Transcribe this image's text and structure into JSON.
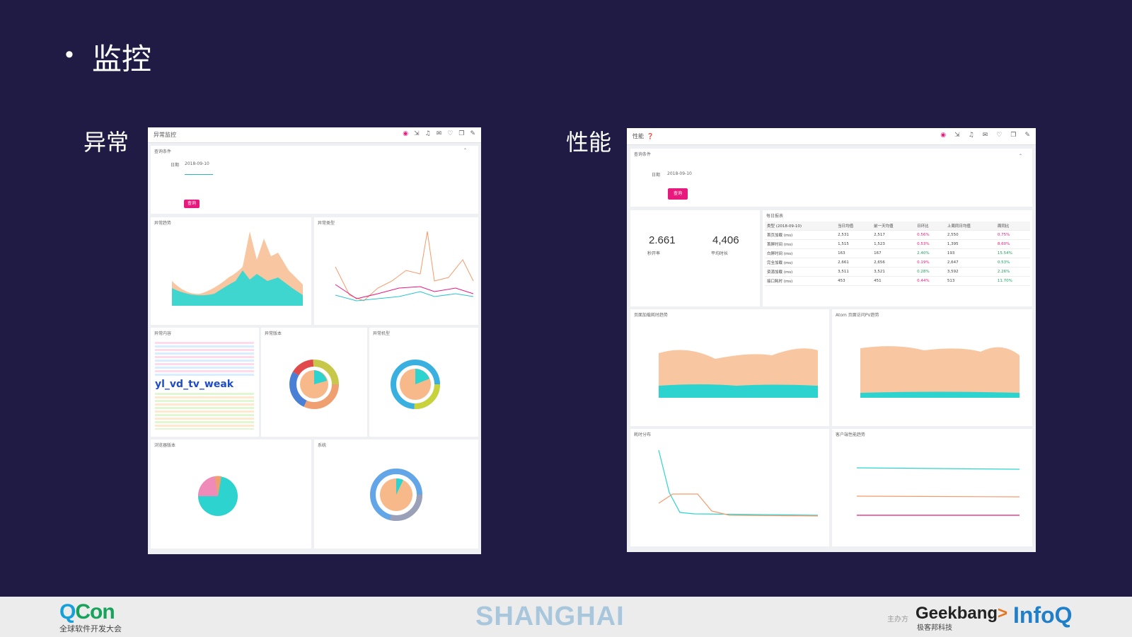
{
  "slide": {
    "bullet": "•",
    "title": "监控",
    "label_left": "异常",
    "label_right": "性能"
  },
  "left_dashboard": {
    "title": "异常监控",
    "query_section": "查询条件",
    "date_label": "日期",
    "date_value": "2018-09-10",
    "query_button": "查询",
    "cards": [
      "异常趋势",
      "异常类型",
      "异常内容",
      "异常版本",
      "异常机型",
      "浏览器版本",
      "系统"
    ],
    "wordcloud_big": "yl_vd_tv_weak"
  },
  "right_dashboard": {
    "title": "性能",
    "query_section": "查询条件",
    "date_label": "日期",
    "date_value": "2018-09-10",
    "query_button": "查询",
    "metric1_value": "2.661",
    "metric1_label": "秒开率",
    "metric2_value": "4,406",
    "metric2_label": "平均时长",
    "table_title": "每日报表",
    "table_headers": [
      "类型 (2018-09-10)",
      "当日均值",
      "前一天均值",
      "日环比",
      "上周同日均值",
      "周同比"
    ],
    "table_rows": [
      [
        "首页加载 (ms)",
        "2,531",
        "2,517",
        "0.56%",
        "2,550",
        "0.75%"
      ],
      [
        "首屏时间 (ms)",
        "1,515",
        "1,523",
        "0.53%",
        "1,395",
        "8.60%"
      ],
      [
        "白屏时间 (ms)",
        "163",
        "167",
        "2.40%",
        "193",
        "15.54%"
      ],
      [
        "完全加载 (ms)",
        "2,661",
        "2,656",
        "0.19%",
        "2,647",
        "0.53%"
      ],
      [
        "资源加载 (ms)",
        "3,511",
        "3,521",
        "0.28%",
        "3,592",
        "2.26%"
      ],
      [
        "接口耗时 (ms)",
        "453",
        "451",
        "0.44%",
        "513",
        "11.70%"
      ]
    ],
    "chart_titles": [
      "页面加载耗时趋势",
      "Atom 页面访问PV趋势",
      "耗时分布",
      "客户端性能趋势"
    ]
  },
  "footer": {
    "qcon_q": "Q",
    "qcon_rest": "Con",
    "qcon_sub": "全球软件开发大会",
    "city": "SHANGHAI",
    "host": "主办方",
    "geek_a": "Geek",
    "geek_b": "bang",
    "geek_c": ">",
    "geek_sub": "极客邦科技",
    "infoq": "InfoQ"
  },
  "colors": {
    "bg": "#1f1b45",
    "accent": "#e8197d",
    "teal": "#2dd4cf",
    "orange": "#f8b98a"
  }
}
